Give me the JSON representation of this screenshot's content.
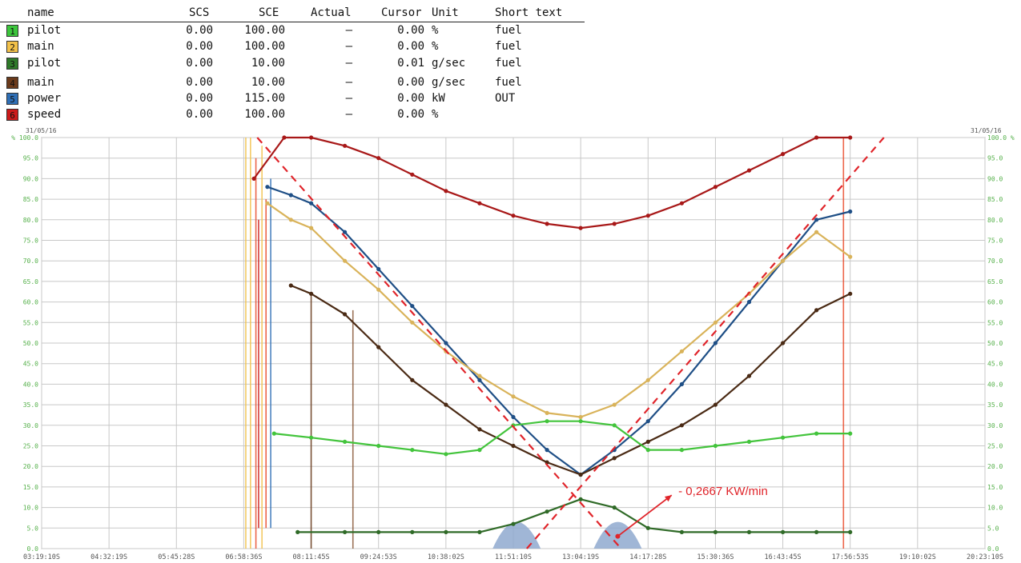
{
  "legend": {
    "headers": [
      "name",
      "SCS",
      "SCE",
      "Actual",
      "Cursor",
      "Unit",
      "Short text"
    ],
    "rows": [
      {
        "idx": "1",
        "name": "pilot",
        "scs": "0.00",
        "sce": "100.00",
        "actual": "–",
        "cursor": "0.00",
        "unit": "%",
        "short": "fuel",
        "color": "#3cc63c"
      },
      {
        "idx": "2",
        "name": "main",
        "scs": "0.00",
        "sce": "100.00",
        "actual": "–",
        "cursor": "0.00",
        "unit": "%",
        "short": "fuel",
        "color": "#f2c14a"
      },
      {
        "idx": "3",
        "name": "pilot",
        "scs": "0.00",
        "sce": "10.00",
        "actual": "–",
        "cursor": "0.01",
        "unit": "g/sec",
        "short": "fuel",
        "color": "#2f7a2a"
      },
      {
        "idx": "4",
        "name": "main",
        "scs": "0.00",
        "sce": "10.00",
        "actual": "–",
        "cursor": "0.00",
        "unit": "g/sec",
        "short": "fuel",
        "color": "#6b3b1c"
      },
      {
        "idx": "5",
        "name": "power",
        "scs": "0.00",
        "sce": "115.00",
        "actual": "–",
        "cursor": "0.00",
        "unit": "kW",
        "short": "OUT",
        "color": "#2f6fb6"
      },
      {
        "idx": "6",
        "name": "speed",
        "scs": "0.00",
        "sce": "100.00",
        "actual": "–",
        "cursor": "0.00",
        "unit": "%",
        "short": "",
        "color": "#cc1a1a"
      }
    ]
  },
  "chart_data": {
    "type": "scatter",
    "date_left": "31/05/16",
    "date_right": "31/05/16",
    "ylim": [
      0,
      100
    ],
    "ytick_values": [
      0,
      5,
      10,
      15,
      20,
      25,
      30,
      35,
      40,
      45,
      50,
      55,
      60,
      65,
      70,
      75,
      80,
      85,
      90,
      95,
      100
    ],
    "ytick_labels_left": [
      "0.0",
      "5.0",
      "10.0",
      "15.0",
      "20.0",
      "25.0",
      "30.0",
      "35.0",
      "40.0",
      "45.0",
      "50.0",
      "55.0",
      "60.0",
      "65.0",
      "70.0",
      "75.0",
      "80.0",
      "85.0",
      "90.0",
      "95.0",
      "% 100.0"
    ],
    "ytick_labels_right": [
      "0.0",
      "5.0",
      "10.0",
      "15.0",
      "20.0",
      "25.0",
      "30.0",
      "35.0",
      "40.0",
      "45.0",
      "50.0",
      "55.0",
      "60.0",
      "65.0",
      "70.0",
      "75.0",
      "80.0",
      "85.0",
      "90.0",
      "95.0",
      "100.0 %"
    ],
    "xtick_labels": [
      "03:19:10S",
      "04:32:19S",
      "05:45:28S",
      "06:58:36S",
      "08:11:45S",
      "09:24:53S",
      "10:38:02S",
      "11:51:10S",
      "13:04:19S",
      "14:17:28S",
      "15:30:36S",
      "16:43:45S",
      "17:56:53S",
      "19:10:02S",
      "20:23:10S"
    ],
    "xlim": [
      0,
      14
    ],
    "annotation": "- 0,2667 KW/min",
    "series": [
      {
        "key": "speed",
        "color": "#a81818",
        "points": [
          [
            3.15,
            90
          ],
          [
            3.6,
            100
          ],
          [
            4.0,
            100
          ],
          [
            4.5,
            98
          ],
          [
            5.0,
            95
          ],
          [
            5.5,
            91
          ],
          [
            6.0,
            87
          ],
          [
            6.5,
            84
          ],
          [
            7.0,
            81
          ],
          [
            7.5,
            79
          ],
          [
            8.0,
            78
          ],
          [
            8.5,
            79
          ],
          [
            9.0,
            81
          ],
          [
            9.5,
            84
          ],
          [
            10.0,
            88
          ],
          [
            10.5,
            92
          ],
          [
            11.0,
            96
          ],
          [
            11.5,
            100
          ],
          [
            12.0,
            100
          ]
        ]
      },
      {
        "key": "power",
        "color": "#1f4f86",
        "points": [
          [
            3.35,
            88
          ],
          [
            3.7,
            86
          ],
          [
            4.0,
            84
          ],
          [
            4.5,
            77
          ],
          [
            5.0,
            68
          ],
          [
            5.5,
            59
          ],
          [
            6.0,
            50
          ],
          [
            6.5,
            41
          ],
          [
            7.0,
            32
          ],
          [
            7.5,
            24
          ],
          [
            8.0,
            18
          ],
          [
            8.5,
            24
          ],
          [
            9.0,
            31
          ],
          [
            9.5,
            40
          ],
          [
            10.0,
            50
          ],
          [
            10.5,
            60
          ],
          [
            11.0,
            70
          ],
          [
            11.5,
            80
          ],
          [
            12.0,
            82
          ]
        ]
      },
      {
        "key": "main_pct",
        "color": "#d9b35a",
        "points": [
          [
            3.35,
            84
          ],
          [
            3.7,
            80
          ],
          [
            4.0,
            78
          ],
          [
            4.5,
            70
          ],
          [
            5.0,
            63
          ],
          [
            5.5,
            55
          ],
          [
            6.0,
            48
          ],
          [
            6.5,
            42
          ],
          [
            7.0,
            37
          ],
          [
            7.5,
            33
          ],
          [
            8.0,
            32
          ],
          [
            8.5,
            35
          ],
          [
            9.0,
            41
          ],
          [
            9.5,
            48
          ],
          [
            10.0,
            55
          ],
          [
            10.5,
            62
          ],
          [
            11.0,
            70
          ],
          [
            11.5,
            77
          ],
          [
            12.0,
            71
          ]
        ]
      },
      {
        "key": "main_gsec",
        "color": "#4a2a14",
        "points": [
          [
            3.7,
            64
          ],
          [
            4.0,
            62
          ],
          [
            4.5,
            57
          ],
          [
            5.0,
            49
          ],
          [
            5.5,
            41
          ],
          [
            6.0,
            35
          ],
          [
            6.5,
            29
          ],
          [
            7.0,
            25
          ],
          [
            7.5,
            21
          ],
          [
            8.0,
            18
          ],
          [
            8.5,
            22
          ],
          [
            9.0,
            26
          ],
          [
            9.5,
            30
          ],
          [
            10.0,
            35
          ],
          [
            10.5,
            42
          ],
          [
            11.0,
            50
          ],
          [
            11.5,
            58
          ],
          [
            12.0,
            62
          ]
        ]
      },
      {
        "key": "pilot_pct",
        "color": "#43c43c",
        "points": [
          [
            3.45,
            28
          ],
          [
            4.0,
            27
          ],
          [
            4.5,
            26
          ],
          [
            5.0,
            25
          ],
          [
            5.5,
            24
          ],
          [
            6.0,
            23
          ],
          [
            6.5,
            24
          ],
          [
            7.0,
            30
          ],
          [
            7.5,
            31
          ],
          [
            8.0,
            31
          ],
          [
            8.5,
            30
          ],
          [
            9.0,
            24
          ],
          [
            9.5,
            24
          ],
          [
            10.0,
            25
          ],
          [
            10.5,
            26
          ],
          [
            11.0,
            27
          ],
          [
            11.5,
            28
          ],
          [
            12.0,
            28
          ]
        ]
      },
      {
        "key": "pilot_gsec",
        "color": "#2f6a27",
        "points": [
          [
            3.8,
            4
          ],
          [
            4.5,
            4
          ],
          [
            5.0,
            4
          ],
          [
            5.5,
            4
          ],
          [
            6.0,
            4
          ],
          [
            6.5,
            4
          ],
          [
            7.0,
            6
          ],
          [
            7.5,
            9
          ],
          [
            8.0,
            12
          ],
          [
            8.5,
            10
          ],
          [
            9.0,
            5
          ],
          [
            9.5,
            4
          ],
          [
            10.0,
            4
          ],
          [
            10.5,
            4
          ],
          [
            11.0,
            4
          ],
          [
            11.5,
            4
          ],
          [
            12.0,
            4
          ]
        ]
      }
    ]
  }
}
